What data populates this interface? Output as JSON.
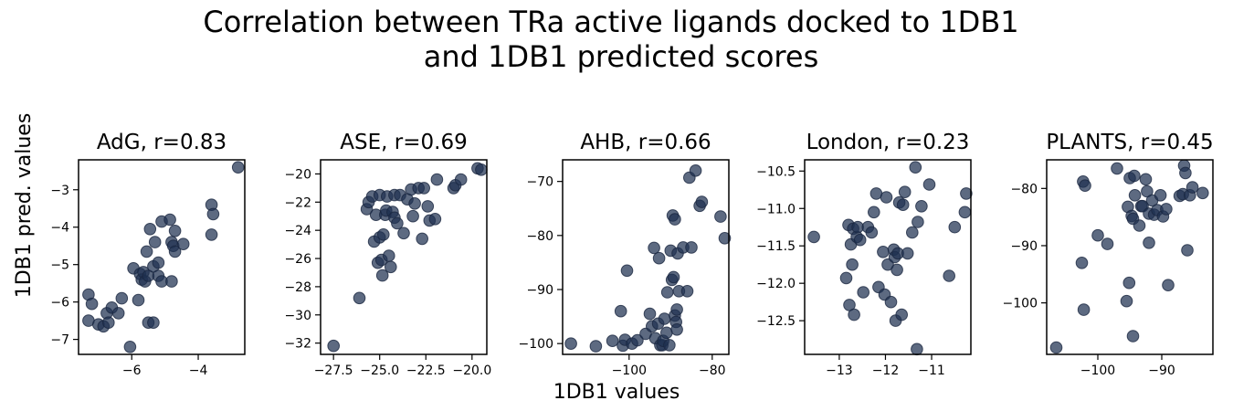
{
  "figure": {
    "title_line1": "Correlation between TRa active ligands docked to 1DB1",
    "title_line2": "and 1DB1 predicted scores",
    "xlabel": "1DB1 values",
    "ylabel": "1DB1 pred. values",
    "marker_color": "#1f3050"
  },
  "chart_data": [
    {
      "type": "scatter",
      "title": "AdG, r=0.83",
      "xlim": [
        -7.6,
        -2.6
      ],
      "ylim": [
        -7.4,
        -2.2
      ],
      "xticks": [
        -6,
        -4
      ],
      "yticks": [
        -7,
        -6,
        -5,
        -4,
        -3
      ],
      "points": [
        [
          -7.3,
          -5.8
        ],
        [
          -7.2,
          -6.05
        ],
        [
          -7.3,
          -6.5
        ],
        [
          -7.0,
          -6.6
        ],
        [
          -6.85,
          -6.65
        ],
        [
          -6.75,
          -6.3
        ],
        [
          -6.6,
          -6.15
        ],
        [
          -6.7,
          -6.55
        ],
        [
          -6.4,
          -6.3
        ],
        [
          -6.3,
          -5.9
        ],
        [
          -6.05,
          -7.2
        ],
        [
          -5.95,
          -5.1
        ],
        [
          -5.8,
          -5.95
        ],
        [
          -5.75,
          -5.25
        ],
        [
          -5.7,
          -5.4
        ],
        [
          -5.65,
          -5.2
        ],
        [
          -5.6,
          -5.45
        ],
        [
          -5.55,
          -4.65
        ],
        [
          -5.5,
          -5.3
        ],
        [
          -5.45,
          -4.05
        ],
        [
          -5.5,
          -6.55
        ],
        [
          -5.35,
          -6.55
        ],
        [
          -5.35,
          -5.05
        ],
        [
          -5.3,
          -4.4
        ],
        [
          -5.2,
          -5.3
        ],
        [
          -5.2,
          -4.95
        ],
        [
          -5.1,
          -3.85
        ],
        [
          -5.1,
          -5.45
        ],
        [
          -4.85,
          -3.8
        ],
        [
          -4.8,
          -4.4
        ],
        [
          -4.8,
          -5.45
        ],
        [
          -4.75,
          -4.5
        ],
        [
          -4.7,
          -4.65
        ],
        [
          -4.7,
          -4.1
        ],
        [
          -4.45,
          -4.45
        ],
        [
          -3.6,
          -3.4
        ],
        [
          -3.55,
          -3.65
        ],
        [
          -3.6,
          -4.2
        ],
        [
          -2.8,
          -2.4
        ]
      ]
    },
    {
      "type": "scatter",
      "title": "ASE, r=0.69",
      "xlim": [
        -28.2,
        -19.2
      ],
      "ylim": [
        -32.8,
        -19.0
      ],
      "xticks": [
        -27.5,
        -25.0,
        -22.5,
        -20.0
      ],
      "xtick_labels": [
        "−27.5",
        "−25.0",
        "−22.5",
        "−20.0"
      ],
      "yticks": [
        -32,
        -30,
        -28,
        -26,
        -24,
        -22,
        -20
      ],
      "points": [
        [
          -27.5,
          -32.2
        ],
        [
          -26.1,
          -28.8
        ],
        [
          -25.7,
          -22.5
        ],
        [
          -25.6,
          -22.0
        ],
        [
          -25.4,
          -21.6
        ],
        [
          -25.3,
          -24.8
        ],
        [
          -25.2,
          -22.9
        ],
        [
          -25.1,
          -26.3
        ],
        [
          -25.0,
          -24.5
        ],
        [
          -25.0,
          -21.5
        ],
        [
          -24.9,
          -26.1
        ],
        [
          -24.85,
          -27.2
        ],
        [
          -24.8,
          -24.3
        ],
        [
          -24.7,
          -22.9
        ],
        [
          -24.65,
          -22.6
        ],
        [
          -24.6,
          -21.6
        ],
        [
          -24.5,
          -25.8
        ],
        [
          -24.4,
          -26.6
        ],
        [
          -24.3,
          -22.7
        ],
        [
          -24.2,
          -23.1
        ],
        [
          -24.2,
          -21.5
        ],
        [
          -24.05,
          -23.5
        ],
        [
          -23.9,
          -21.5
        ],
        [
          -23.7,
          -24.2
        ],
        [
          -23.5,
          -21.8
        ],
        [
          -23.3,
          -21.1
        ],
        [
          -23.2,
          -23.0
        ],
        [
          -23.1,
          -22.1
        ],
        [
          -22.9,
          -21.0
        ],
        [
          -22.7,
          -24.6
        ],
        [
          -22.6,
          -21.0
        ],
        [
          -22.4,
          -22.3
        ],
        [
          -22.3,
          -23.3
        ],
        [
          -22.0,
          -23.2
        ],
        [
          -21.9,
          -20.4
        ],
        [
          -21.0,
          -21.0
        ],
        [
          -20.9,
          -20.8
        ],
        [
          -20.6,
          -20.4
        ],
        [
          -19.7,
          -19.6
        ],
        [
          -19.5,
          -19.7
        ]
      ]
    },
    {
      "type": "scatter",
      "title": "AHB, r=0.66",
      "xlim": [
        -116,
        -76
      ],
      "ylim": [
        -102,
        -66
      ],
      "xticks": [
        -100,
        -80
      ],
      "yticks": [
        -100,
        -90,
        -80,
        -70
      ],
      "points": [
        [
          -114,
          -100
        ],
        [
          -108,
          -100.5
        ],
        [
          -104,
          -99.5
        ],
        [
          -102,
          -94
        ],
        [
          -101.5,
          -100.4
        ],
        [
          -101,
          -99.3
        ],
        [
          -100.5,
          -86.5
        ],
        [
          -99.3,
          -100
        ],
        [
          -98,
          -99.4
        ],
        [
          -96,
          -98.2
        ],
        [
          -95,
          -94.5
        ],
        [
          -94.5,
          -96.8
        ],
        [
          -94,
          -82.3
        ],
        [
          -93.7,
          -99
        ],
        [
          -93,
          -96.3
        ],
        [
          -92.8,
          -84.2
        ],
        [
          -92.5,
          -100.3
        ],
        [
          -92,
          -100.3
        ],
        [
          -91.8,
          -99.5
        ],
        [
          -91.5,
          -95.4
        ],
        [
          -91,
          -98
        ],
        [
          -90.8,
          -90.5
        ],
        [
          -90.3,
          -100.3
        ],
        [
          -90,
          -82.8
        ],
        [
          -89.7,
          -88.2
        ],
        [
          -89.5,
          -76.3
        ],
        [
          -89.3,
          -87.7
        ],
        [
          -89,
          -94.8
        ],
        [
          -89,
          -77
        ],
        [
          -88.7,
          -96
        ],
        [
          -88.5,
          -97.4
        ],
        [
          -88.5,
          -93.7
        ],
        [
          -88.3,
          -83.3
        ],
        [
          -88,
          -90.3
        ],
        [
          -87,
          -82.2
        ],
        [
          -86,
          -90.3
        ],
        [
          -85.5,
          -69.3
        ],
        [
          -85,
          -82.2
        ],
        [
          -84,
          -68
        ],
        [
          -83,
          -74.5
        ],
        [
          -82.5,
          -73.8
        ],
        [
          -78,
          -76.5
        ],
        [
          -77,
          -80.5
        ]
      ]
    },
    {
      "type": "scatter",
      "title": "London, r=0.23",
      "xlim": [
        -13.75,
        -10.15
      ],
      "ylim": [
        -12.95,
        -10.35
      ],
      "xticks": [
        -13,
        -12,
        -11
      ],
      "yticks": [
        -12.5,
        -12.0,
        -11.5,
        -11.0,
        -10.5
      ],
      "ytick_labels": [
        "−12.5",
        "−12.0",
        "−11.5",
        "−11.0",
        "−10.5"
      ],
      "points": [
        [
          -13.55,
          -11.38
        ],
        [
          -12.85,
          -11.93
        ],
        [
          -12.8,
          -11.22
        ],
        [
          -12.78,
          -12.29
        ],
        [
          -12.75,
          -11.48
        ],
        [
          -12.72,
          -11.75
        ],
        [
          -12.7,
          -11.27
        ],
        [
          -12.68,
          -12.42
        ],
        [
          -12.62,
          -11.38
        ],
        [
          -12.6,
          -11.25
        ],
        [
          -12.55,
          -11.42
        ],
        [
          -12.48,
          -12.12
        ],
        [
          -12.38,
          -11.25
        ],
        [
          -12.3,
          -11.32
        ],
        [
          -12.25,
          -11.05
        ],
        [
          -12.2,
          -10.8
        ],
        [
          -12.15,
          -12.05
        ],
        [
          -12.05,
          -11.58
        ],
        [
          -12.02,
          -12.15
        ],
        [
          -11.98,
          -10.85
        ],
        [
          -11.95,
          -11.75
        ],
        [
          -11.88,
          -12.25
        ],
        [
          -11.82,
          -11.55
        ],
        [
          -11.8,
          -11.65
        ],
        [
          -11.78,
          -12.5
        ],
        [
          -11.75,
          -11.82
        ],
        [
          -11.73,
          -11.6
        ],
        [
          -11.7,
          -10.92
        ],
        [
          -11.65,
          -12.42
        ],
        [
          -11.62,
          -10.95
        ],
        [
          -11.58,
          -10.78
        ],
        [
          -11.52,
          -11.6
        ],
        [
          -11.42,
          -11.32
        ],
        [
          -11.35,
          -10.45
        ],
        [
          -11.32,
          -12.88
        ],
        [
          -11.3,
          -11.18
        ],
        [
          -11.22,
          -10.97
        ],
        [
          -11.05,
          -10.68
        ],
        [
          -10.62,
          -11.9
        ],
        [
          -10.5,
          -11.25
        ],
        [
          -10.28,
          -11.05
        ],
        [
          -10.25,
          -10.8
        ]
      ]
    },
    {
      "type": "scatter",
      "title": "PLANTS, r=0.45",
      "xlim": [
        -108,
        -82
      ],
      "ylim": [
        -109,
        -75
      ],
      "xticks": [
        -100,
        -90
      ],
      "yticks": [
        -100,
        -90,
        -80
      ],
      "points": [
        [
          -106.5,
          -107.8
        ],
        [
          -102.5,
          -93
        ],
        [
          -102.3,
          -78.8
        ],
        [
          -102.2,
          -101.2
        ],
        [
          -102,
          -79.5
        ],
        [
          -100,
          -88.2
        ],
        [
          -98.5,
          -89.7
        ],
        [
          -97,
          -76.5
        ],
        [
          -95.5,
          -99.7
        ],
        [
          -95.3,
          -83.2
        ],
        [
          -95.1,
          -96.5
        ],
        [
          -95,
          -78.2
        ],
        [
          -94.7,
          -84.8
        ],
        [
          -94.5,
          -85.3
        ],
        [
          -94.5,
          -105.8
        ],
        [
          -94.3,
          -77.8
        ],
        [
          -94.2,
          -81.2
        ],
        [
          -93.5,
          -86.5
        ],
        [
          -93.2,
          -83.1
        ],
        [
          -93,
          -83.1
        ],
        [
          -92.5,
          -78.4
        ],
        [
          -92.3,
          -80.5
        ],
        [
          -92,
          -84.4
        ],
        [
          -92,
          -89.5
        ],
        [
          -91.5,
          -82.1
        ],
        [
          -91.2,
          -84.6
        ],
        [
          -90.7,
          -83.8
        ],
        [
          -90.2,
          -81.2
        ],
        [
          -89.8,
          -84.9
        ],
        [
          -89.3,
          -83.6
        ],
        [
          -89,
          -96.9
        ],
        [
          -87.2,
          -81.3
        ],
        [
          -86.7,
          -81
        ],
        [
          -86.5,
          -76
        ],
        [
          -86.3,
          -77.3
        ],
        [
          -86,
          -90.8
        ],
        [
          -85.6,
          -81.2
        ],
        [
          -85.2,
          -79.8
        ],
        [
          -83.6,
          -80.8
        ]
      ]
    }
  ]
}
